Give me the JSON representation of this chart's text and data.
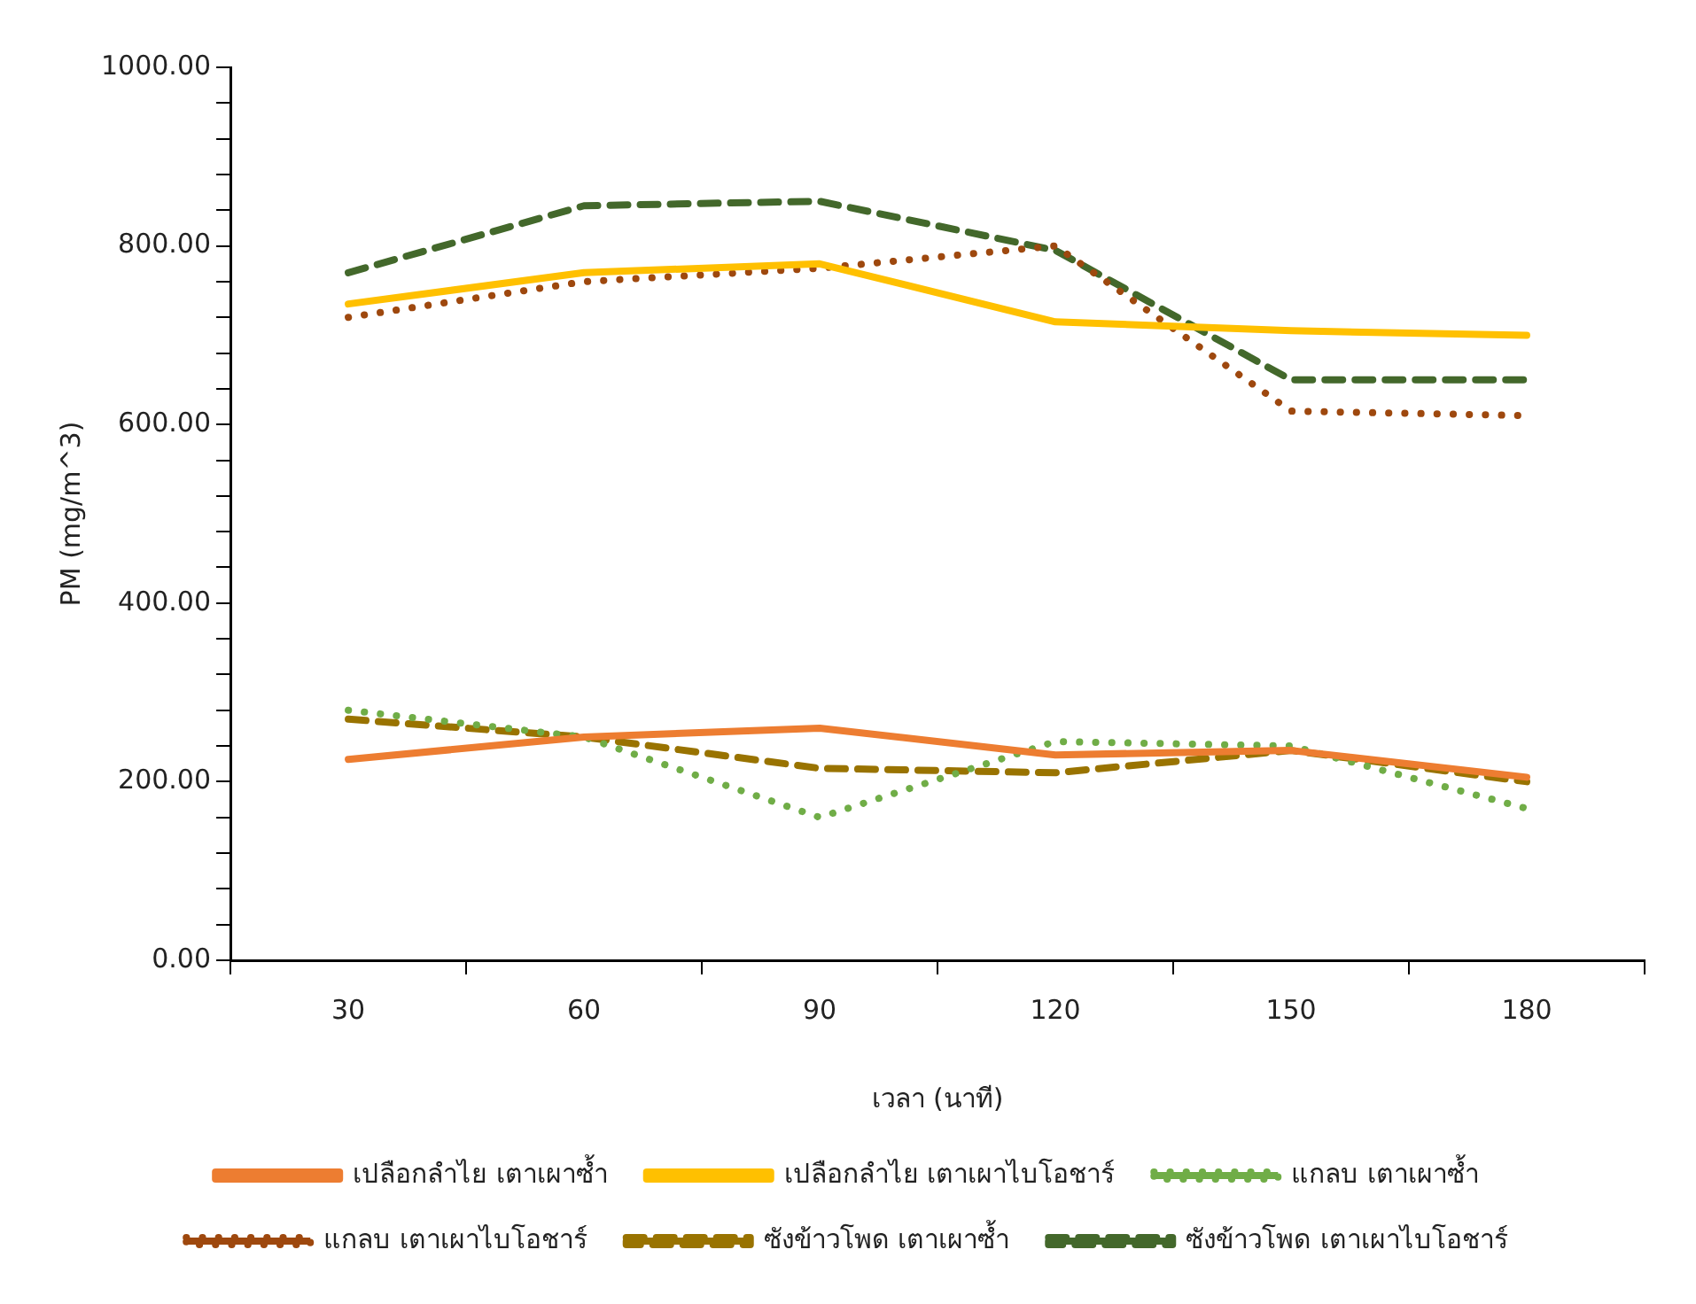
{
  "chart_data": {
    "type": "line",
    "xlabel": "เวลา (นาที)",
    "ylabel": "PM (mg/m^3)",
    "categories": [
      "30",
      "60",
      "90",
      "120",
      "150",
      "180"
    ],
    "ylim": [
      0,
      1000
    ],
    "yticks": [
      {
        "value": 0,
        "label": "0.00"
      },
      {
        "value": 40,
        "label": null
      },
      {
        "value": 80,
        "label": null
      },
      {
        "value": 120,
        "label": null
      },
      {
        "value": 160,
        "label": null
      },
      {
        "value": 200,
        "label": "200.00"
      },
      {
        "value": 240,
        "label": null
      },
      {
        "value": 280,
        "label": null
      },
      {
        "value": 320,
        "label": null
      },
      {
        "value": 360,
        "label": null
      },
      {
        "value": 400,
        "label": "400.00"
      },
      {
        "value": 440,
        "label": null
      },
      {
        "value": 480,
        "label": null
      },
      {
        "value": 520,
        "label": null
      },
      {
        "value": 560,
        "label": null
      },
      {
        "value": 600,
        "label": "600.00"
      },
      {
        "value": 640,
        "label": null
      },
      {
        "value": 680,
        "label": null
      },
      {
        "value": 720,
        "label": null
      },
      {
        "value": 760,
        "label": null
      },
      {
        "value": 800,
        "label": "800.00"
      },
      {
        "value": 840,
        "label": null
      },
      {
        "value": 880,
        "label": null
      },
      {
        "value": 920,
        "label": null
      },
      {
        "value": 960,
        "label": null
      },
      {
        "value": 1000,
        "label": "1000.00"
      }
    ],
    "grid": false,
    "legend": "bottom",
    "marker": "none",
    "series": [
      {
        "name": "เปลือกลำไย เตาเผาซ้ำ",
        "color": "#ed7d31",
        "line_style": "solid",
        "values": [
          225,
          250,
          260,
          230,
          235,
          205
        ]
      },
      {
        "name": "เปลือกลำไย เตาเผาไบโอชาร์",
        "color": "#ffc000",
        "line_style": "solid",
        "values": [
          735,
          770,
          780,
          715,
          705,
          700
        ]
      },
      {
        "name": "แกลบ เตาเผาซ้ำ",
        "color": "#70ad47",
        "line_style": "dotted",
        "values": [
          280,
          250,
          160,
          245,
          240,
          170
        ]
      },
      {
        "name": "แกลบ เตาเผาไบโอชาร์",
        "color": "#9e480e",
        "line_style": "dotted",
        "values": [
          720,
          760,
          775,
          800,
          615,
          610
        ]
      },
      {
        "name": "ซังข้าวโพด เตาเผาซ้ำ",
        "color": "#997300",
        "line_style": "dashed",
        "values": [
          270,
          250,
          215,
          210,
          235,
          200
        ]
      },
      {
        "name": "ซังข้าวโพด เตาเผาไบโอชาร์",
        "color": "#43682b",
        "line_style": "dashed",
        "values": [
          770,
          845,
          850,
          795,
          650,
          650
        ]
      }
    ]
  }
}
